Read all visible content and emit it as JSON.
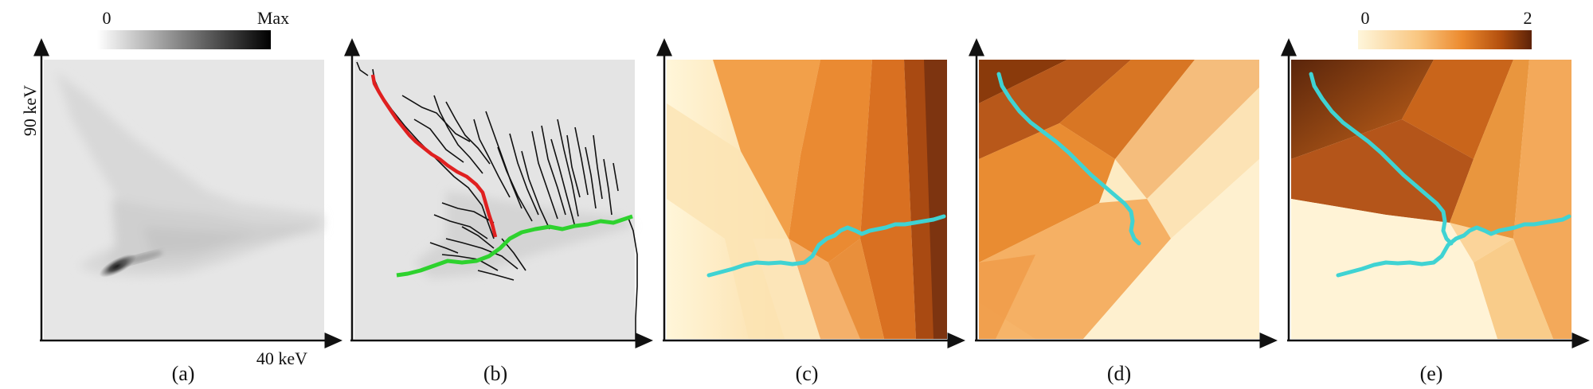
{
  "panels": [
    {
      "id": "a",
      "label": "(a)"
    },
    {
      "id": "b",
      "label": "(b)"
    },
    {
      "id": "c",
      "label": "(c)"
    },
    {
      "id": "d",
      "label": "(d)"
    },
    {
      "id": "e",
      "label": "(e)"
    }
  ],
  "axes": {
    "y_label": "90 keV",
    "x_label": "40 keV"
  },
  "colorbars": {
    "gray": {
      "min_label": "0",
      "max_label": "Max",
      "colors": [
        "#ffffff",
        "#000000"
      ]
    },
    "orange": {
      "min_label": "0",
      "max_label": "2",
      "colors": [
        "#fdf5d8",
        "#f7b060",
        "#e27620",
        "#8a3a0b",
        "#5c2208"
      ]
    }
  },
  "colors": {
    "red_path": "#e02020",
    "green_path": "#2ed22e",
    "cyan_path": "#3fd3d3",
    "branch": "#111111",
    "background_gray": "#e4e4e4"
  }
}
